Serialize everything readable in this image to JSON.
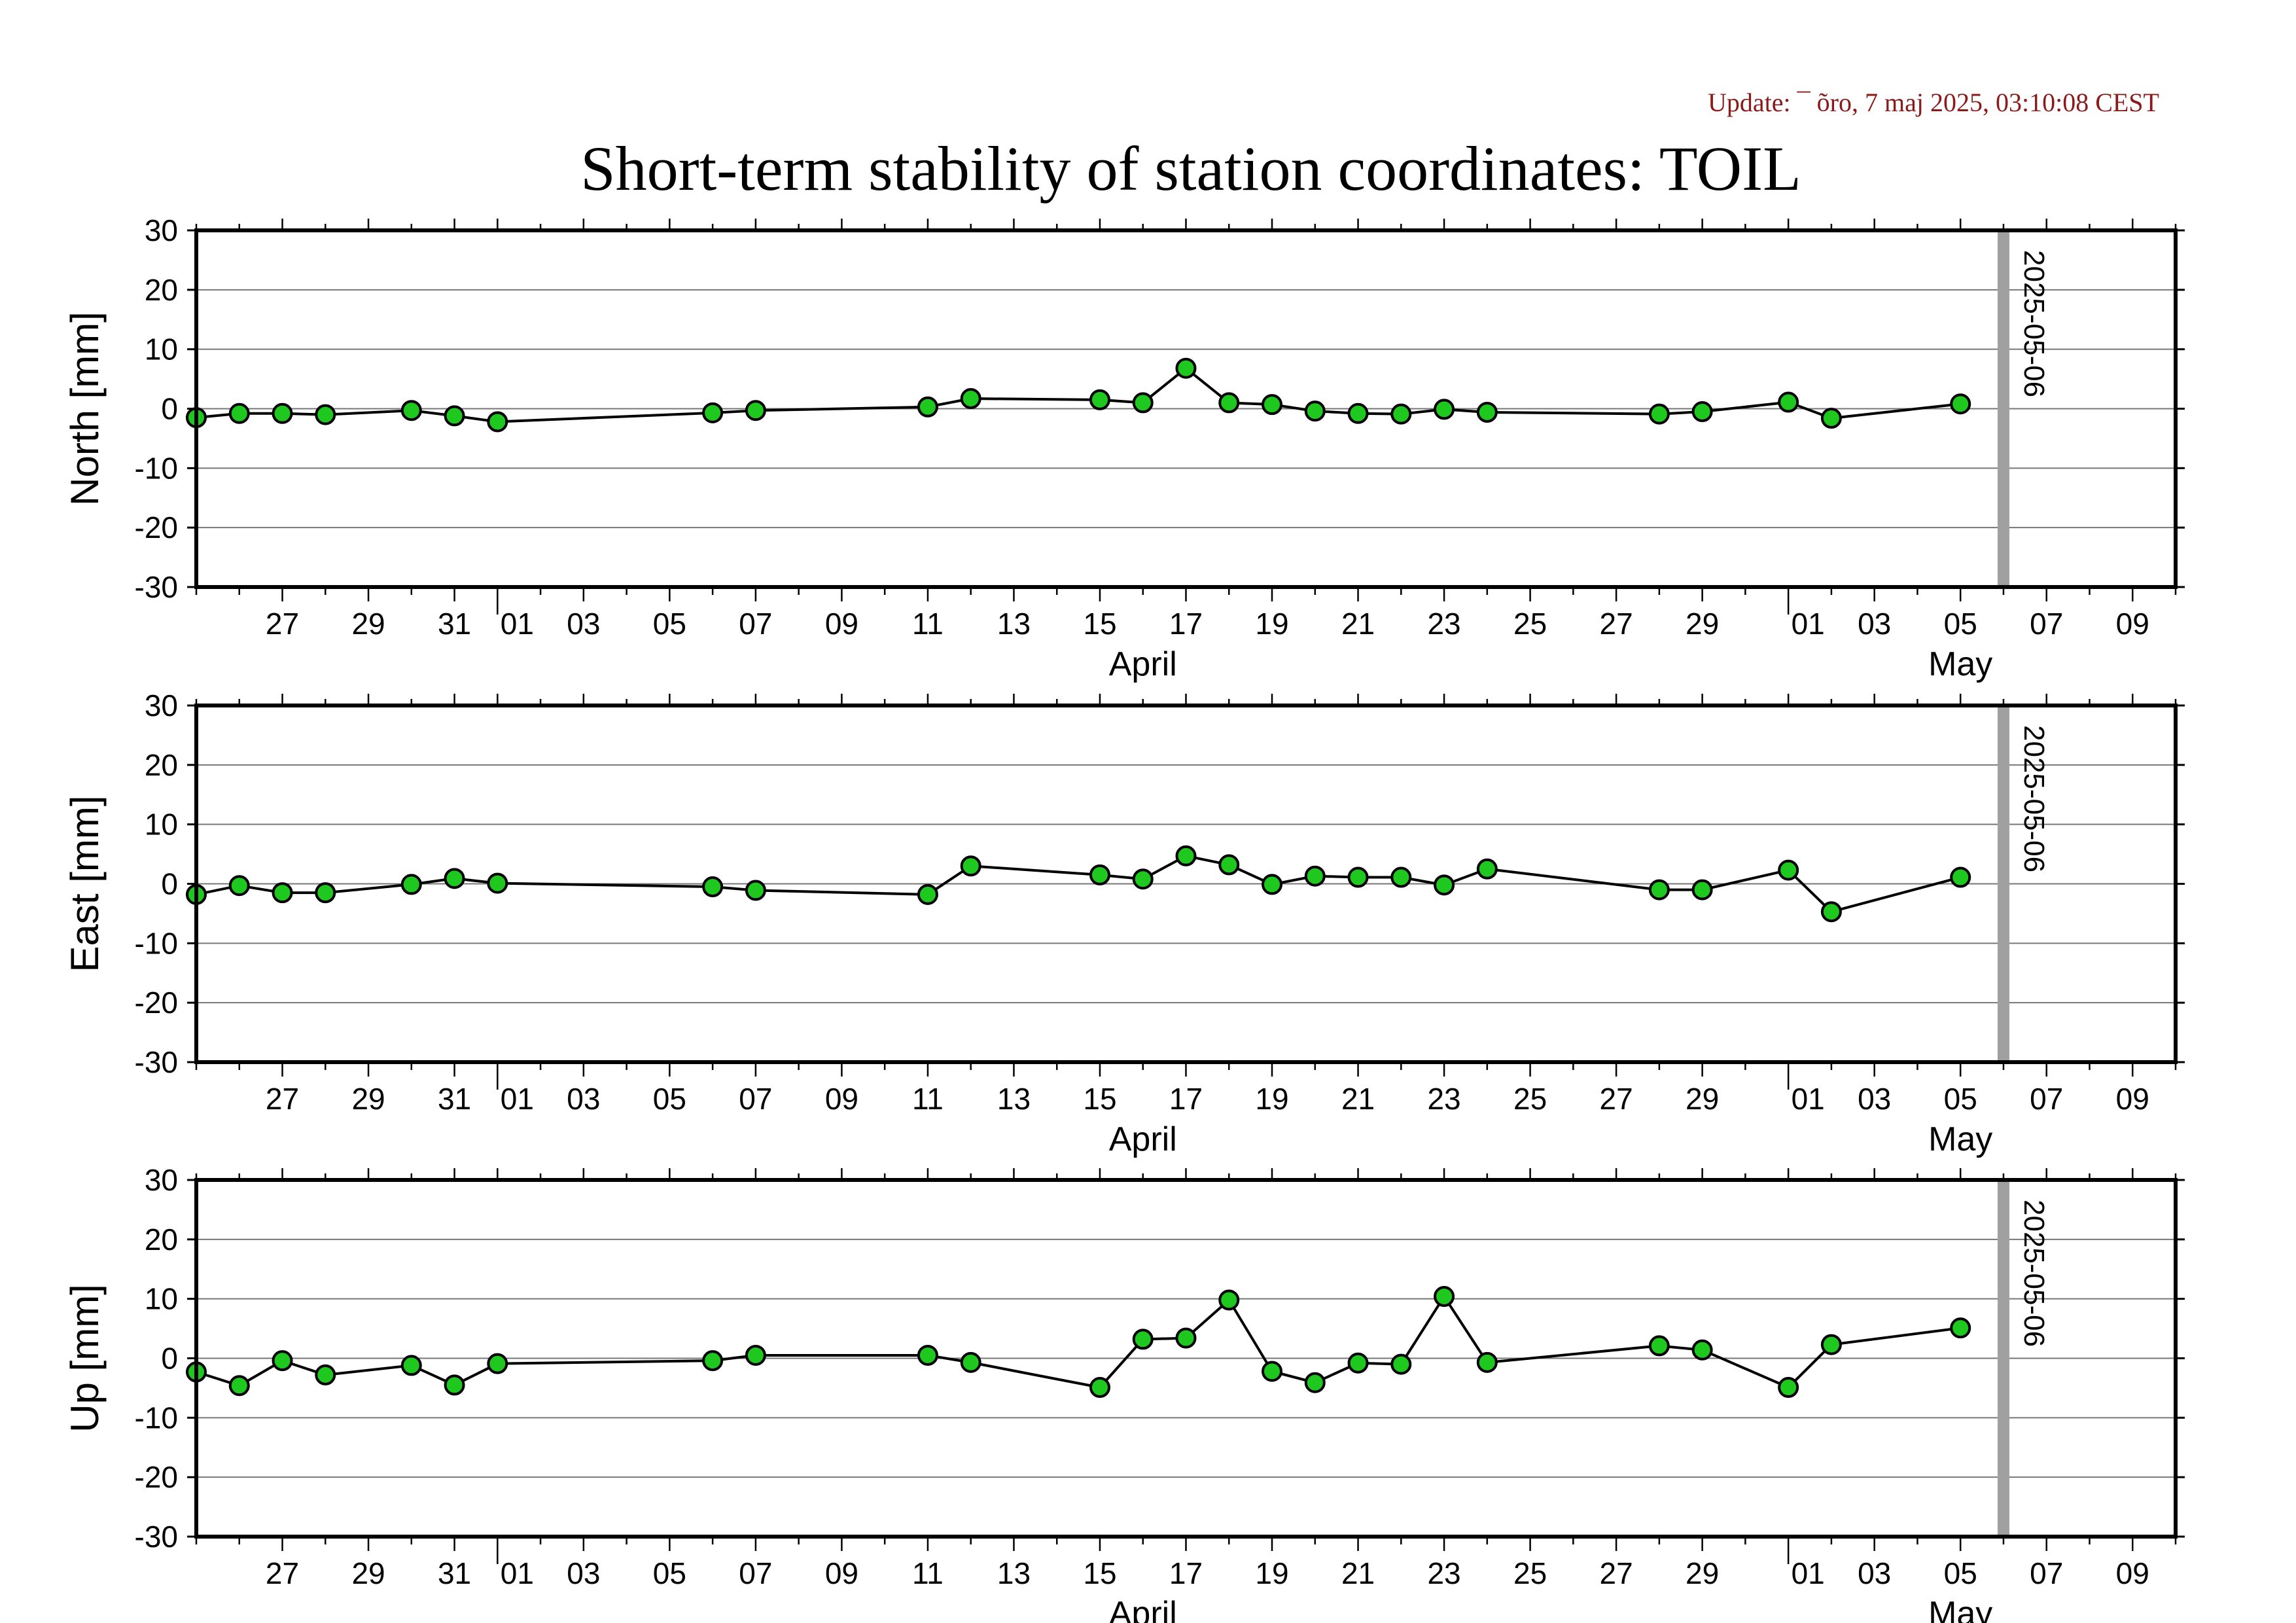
{
  "header": {
    "update_text": "Update: ¯ õro, 7 maj 2025, 03:10:08 CEST",
    "title": "Short-term stability of station coordinates: TOIL"
  },
  "colors": {
    "marker_fill": "#1ec81e",
    "marker_stroke": "#000000",
    "line": "#000000",
    "grid": "#777777",
    "date_marker": "#a0a0a0"
  },
  "chart_data": [
    {
      "type": "scatter",
      "title": "",
      "xlabel": "",
      "ylabel": "North [mm]",
      "ylim": [
        -30,
        30
      ],
      "yticks": [
        -30,
        -20,
        -10,
        0,
        10,
        20,
        30
      ],
      "xlim": [
        "2025-03-25",
        "2025-05-10"
      ],
      "x_tick_labels": [
        "27",
        "29",
        "31",
        "01",
        "03",
        "05",
        "07",
        "09",
        "11",
        "13",
        "15",
        "17",
        "19",
        "21",
        "23",
        "25",
        "27",
        "29",
        "01",
        "03",
        "05",
        "07",
        "09"
      ],
      "month_labels": [
        "April",
        "May"
      ],
      "grid": true,
      "marker_line": {
        "date": "2025-05-06",
        "label": "2025-05-06"
      },
      "series": [
        {
          "x": [
            "2025-03-25",
            "2025-03-26",
            "2025-03-27",
            "2025-03-28",
            "2025-03-30",
            "2025-03-31",
            "2025-04-01",
            "2025-04-06",
            "2025-04-07",
            "2025-04-11",
            "2025-04-12",
            "2025-04-15",
            "2025-04-16",
            "2025-04-17",
            "2025-04-18",
            "2025-04-19",
            "2025-04-20",
            "2025-04-21",
            "2025-04-22",
            "2025-04-23",
            "2025-04-24",
            "2025-04-28",
            "2025-04-29",
            "2025-05-01",
            "2025-05-02",
            "2025-05-05"
          ],
          "y": [
            -1.5,
            -0.8,
            -0.8,
            -1.0,
            -0.3,
            -1.2,
            -2.2,
            -0.7,
            -0.3,
            0.3,
            1.7,
            1.5,
            1.0,
            6.8,
            1.0,
            0.7,
            -0.4,
            -0.8,
            -0.9,
            -0.1,
            -0.6,
            -0.9,
            -0.5,
            1.1,
            -1.6,
            0.8
          ]
        }
      ]
    },
    {
      "type": "scatter",
      "title": "",
      "xlabel": "",
      "ylabel": "East [mm]",
      "ylim": [
        -30,
        30
      ],
      "yticks": [
        -30,
        -20,
        -10,
        0,
        10,
        20,
        30
      ],
      "xlim": [
        "2025-03-25",
        "2025-05-10"
      ],
      "x_tick_labels": [
        "27",
        "29",
        "31",
        "01",
        "03",
        "05",
        "07",
        "09",
        "11",
        "13",
        "15",
        "17",
        "19",
        "21",
        "23",
        "25",
        "27",
        "29",
        "01",
        "03",
        "05",
        "07",
        "09"
      ],
      "month_labels": [
        "April",
        "May"
      ],
      "grid": true,
      "marker_line": {
        "date": "2025-05-06",
        "label": "2025-05-06"
      },
      "series": [
        {
          "x": [
            "2025-03-25",
            "2025-03-26",
            "2025-03-27",
            "2025-03-28",
            "2025-03-30",
            "2025-03-31",
            "2025-04-01",
            "2025-04-06",
            "2025-04-07",
            "2025-04-11",
            "2025-04-12",
            "2025-04-15",
            "2025-04-16",
            "2025-04-17",
            "2025-04-18",
            "2025-04-19",
            "2025-04-20",
            "2025-04-21",
            "2025-04-22",
            "2025-04-23",
            "2025-04-24",
            "2025-04-28",
            "2025-04-29",
            "2025-05-01",
            "2025-05-02",
            "2025-05-05"
          ],
          "y": [
            -1.8,
            -0.3,
            -1.5,
            -1.5,
            -0.1,
            0.9,
            0.1,
            -0.5,
            -1.1,
            -1.8,
            3.0,
            1.5,
            0.8,
            4.7,
            3.2,
            -0.1,
            1.3,
            1.1,
            1.1,
            -0.2,
            2.5,
            -1.0,
            -1.0,
            2.3,
            -4.7,
            1.1
          ]
        }
      ]
    },
    {
      "type": "scatter",
      "title": "",
      "xlabel": "",
      "ylabel": "Up [mm]",
      "ylim": [
        -30,
        30
      ],
      "yticks": [
        -30,
        -20,
        -10,
        0,
        10,
        20,
        30
      ],
      "xlim": [
        "2025-03-25",
        "2025-05-10"
      ],
      "x_tick_labels": [
        "27",
        "29",
        "31",
        "01",
        "03",
        "05",
        "07",
        "09",
        "11",
        "13",
        "15",
        "17",
        "19",
        "21",
        "23",
        "25",
        "27",
        "29",
        "01",
        "03",
        "05",
        "07",
        "09"
      ],
      "month_labels": [
        "April",
        "May"
      ],
      "grid": true,
      "marker_line": {
        "date": "2025-05-06",
        "label": "2025-05-06"
      },
      "series": [
        {
          "x": [
            "2025-03-25",
            "2025-03-26",
            "2025-03-27",
            "2025-03-28",
            "2025-03-30",
            "2025-03-31",
            "2025-04-01",
            "2025-04-06",
            "2025-04-07",
            "2025-04-11",
            "2025-04-12",
            "2025-04-15",
            "2025-04-16",
            "2025-04-17",
            "2025-04-18",
            "2025-04-19",
            "2025-04-20",
            "2025-04-21",
            "2025-04-22",
            "2025-04-23",
            "2025-04-24",
            "2025-04-28",
            "2025-04-29",
            "2025-05-01",
            "2025-05-02",
            "2025-05-05"
          ],
          "y": [
            -2.3,
            -4.6,
            -0.4,
            -2.8,
            -1.2,
            -4.5,
            -0.9,
            -0.4,
            0.5,
            0.5,
            -0.7,
            -4.9,
            3.2,
            3.4,
            9.8,
            -2.2,
            -4.1,
            -0.8,
            -1.0,
            10.4,
            -0.7,
            2.1,
            1.4,
            -4.9,
            2.3,
            5.1
          ]
        }
      ]
    }
  ]
}
